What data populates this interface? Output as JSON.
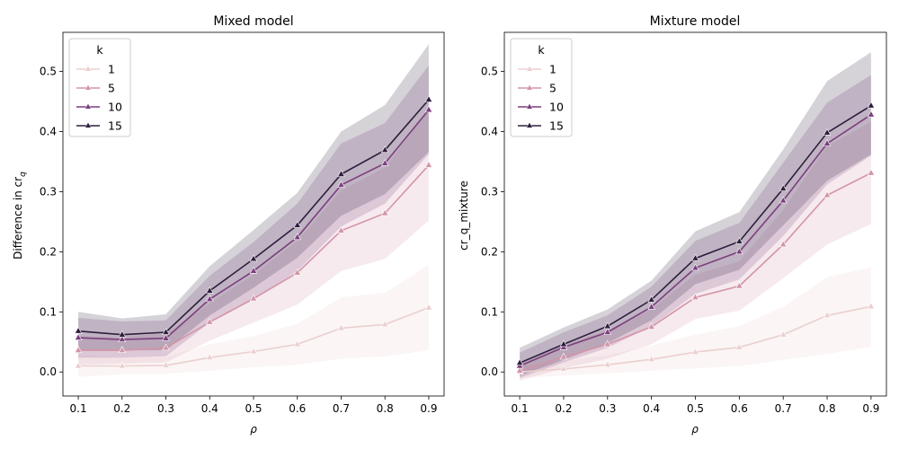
{
  "chart_data": [
    {
      "type": "line",
      "title": "Mixed model",
      "xlabel": "ρ",
      "ylabel": "Difference in cr",
      "ylabel_sub": "q",
      "x": [
        0.1,
        0.2,
        0.3,
        0.4,
        0.5,
        0.6,
        0.7,
        0.8,
        0.9
      ],
      "x_ticks": [
        "0.1",
        "0.2",
        "0.3",
        "0.4",
        "0.5",
        "0.6",
        "0.7",
        "0.8",
        "0.9"
      ],
      "y_ticks": [
        "0.0",
        "0.1",
        "0.2",
        "0.3",
        "0.4",
        "0.5"
      ],
      "ylim": [
        -0.04,
        0.565
      ],
      "legend": {
        "title": "k",
        "position": "top-left"
      },
      "series": [
        {
          "name": "1",
          "color": "#ebcfcf",
          "values": [
            0.01,
            0.01,
            0.011,
            0.024,
            0.034,
            0.046,
            0.073,
            0.079,
            0.107
          ],
          "lower": [
            -0.008,
            -0.004,
            -0.003,
            0.002,
            0.008,
            0.012,
            0.022,
            0.026,
            0.036
          ],
          "upper": [
            0.028,
            0.024,
            0.025,
            0.046,
            0.06,
            0.08,
            0.124,
            0.132,
            0.178
          ]
        },
        {
          "name": "5",
          "color": "#d494a8",
          "values": [
            0.036,
            0.036,
            0.04,
            0.083,
            0.122,
            0.165,
            0.235,
            0.264,
            0.344
          ],
          "lower": [
            0.012,
            0.014,
            0.016,
            0.052,
            0.082,
            0.112,
            0.168,
            0.188,
            0.252
          ],
          "upper": [
            0.06,
            0.058,
            0.064,
            0.114,
            0.162,
            0.218,
            0.302,
            0.34,
            0.436
          ]
        },
        {
          "name": "10",
          "color": "#7c3f7e",
          "values": [
            0.057,
            0.054,
            0.056,
            0.121,
            0.168,
            0.224,
            0.311,
            0.347,
            0.436
          ],
          "lower": [
            0.024,
            0.024,
            0.026,
            0.082,
            0.12,
            0.168,
            0.242,
            0.28,
            0.362
          ],
          "upper": [
            0.09,
            0.084,
            0.086,
            0.16,
            0.216,
            0.28,
            0.38,
            0.414,
            0.51
          ]
        },
        {
          "name": "15",
          "color": "#2d1e3e",
          "values": [
            0.068,
            0.062,
            0.066,
            0.135,
            0.188,
            0.244,
            0.329,
            0.369,
            0.453
          ],
          "lower": [
            0.036,
            0.036,
            0.036,
            0.094,
            0.14,
            0.19,
            0.26,
            0.296,
            0.366
          ],
          "upper": [
            0.1,
            0.089,
            0.096,
            0.176,
            0.236,
            0.298,
            0.4,
            0.444,
            0.545
          ]
        }
      ]
    },
    {
      "type": "line",
      "title": "Mixture model",
      "xlabel": "ρ",
      "ylabel": "cr_q_mixture",
      "x": [
        0.1,
        0.2,
        0.3,
        0.4,
        0.5,
        0.6,
        0.7,
        0.8,
        0.9
      ],
      "x_ticks": [
        "0.1",
        "0.2",
        "0.3",
        "0.4",
        "0.5",
        "0.6",
        "0.7",
        "0.8",
        "0.9"
      ],
      "y_ticks": [
        "0.0",
        "0.1",
        "0.2",
        "0.3",
        "0.4",
        "0.5"
      ],
      "ylim": [
        -0.04,
        0.565
      ],
      "legend": {
        "title": "k",
        "position": "top-left"
      },
      "series": [
        {
          "name": "1",
          "color": "#ebcfcf",
          "values": [
            0.0,
            0.005,
            0.012,
            0.021,
            0.033,
            0.041,
            0.062,
            0.094,
            0.109
          ],
          "lower": [
            -0.01,
            -0.006,
            -0.002,
            0.002,
            0.006,
            0.01,
            0.02,
            0.03,
            0.042
          ],
          "upper": [
            0.01,
            0.018,
            0.028,
            0.044,
            0.062,
            0.076,
            0.108,
            0.158,
            0.174
          ]
        },
        {
          "name": "5",
          "color": "#d494a8",
          "values": [
            0.002,
            0.025,
            0.046,
            0.075,
            0.124,
            0.143,
            0.212,
            0.294,
            0.331
          ],
          "lower": [
            -0.014,
            0.006,
            0.022,
            0.046,
            0.088,
            0.102,
            0.156,
            0.212,
            0.246
          ],
          "upper": [
            0.018,
            0.046,
            0.07,
            0.104,
            0.162,
            0.184,
            0.27,
            0.376,
            0.416
          ]
        },
        {
          "name": "10",
          "color": "#7c3f7e",
          "values": [
            0.01,
            0.041,
            0.066,
            0.108,
            0.173,
            0.2,
            0.285,
            0.38,
            0.428
          ],
          "lower": [
            -0.01,
            0.016,
            0.04,
            0.076,
            0.13,
            0.154,
            0.226,
            0.312,
            0.36
          ],
          "upper": [
            0.032,
            0.066,
            0.094,
            0.142,
            0.218,
            0.248,
            0.348,
            0.448,
            0.494
          ]
        },
        {
          "name": "15",
          "color": "#2d1e3e",
          "values": [
            0.015,
            0.046,
            0.076,
            0.12,
            0.189,
            0.217,
            0.305,
            0.398,
            0.443
          ],
          "lower": [
            -0.006,
            0.02,
            0.048,
            0.086,
            0.146,
            0.17,
            0.244,
            0.318,
            0.362
          ],
          "upper": [
            0.04,
            0.074,
            0.104,
            0.152,
            0.234,
            0.266,
            0.37,
            0.484,
            0.532
          ]
        }
      ]
    }
  ]
}
